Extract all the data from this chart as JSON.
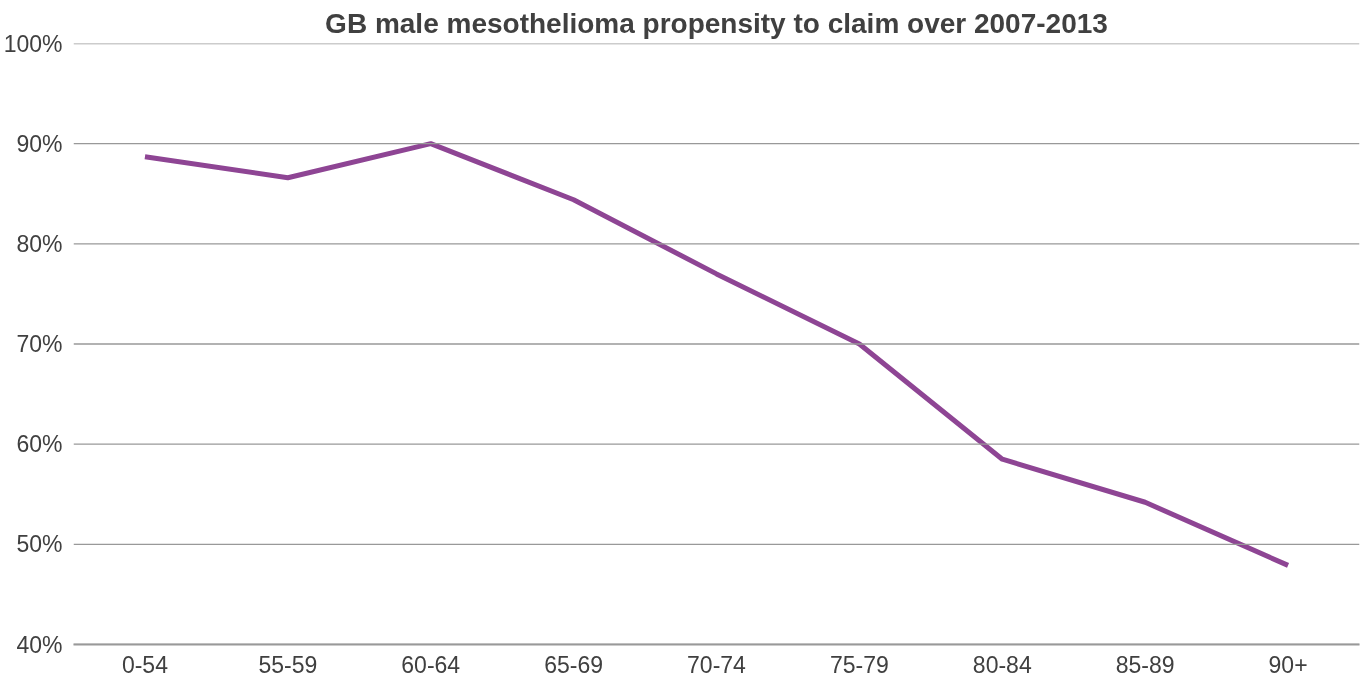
{
  "chart_data": {
    "type": "line",
    "title": "GB male mesothelioma propensity to claim over 2007-2013",
    "categories": [
      "0-54",
      "55-59",
      "60-64",
      "65-69",
      "70-74",
      "75-79",
      "80-84",
      "85-89",
      "90+"
    ],
    "series": [
      {
        "color": "#8e4594",
        "values": [
          88.7,
          86.6,
          90,
          84.4,
          77.0,
          70,
          58.5,
          54.2,
          47.9
        ]
      }
    ],
    "ylim": [
      40,
      100
    ],
    "yticks": [
      {
        "value": 40,
        "label": "40%"
      },
      {
        "value": 50,
        "label": "50%"
      },
      {
        "value": 60,
        "label": "60%"
      },
      {
        "value": 70,
        "label": "70%"
      },
      {
        "value": 80,
        "label": "80%"
      },
      {
        "value": 90,
        "label": "90%"
      },
      {
        "value": 100,
        "label": "100%"
      }
    ],
    "grid": "y",
    "marker": "none",
    "line_style": "solid"
  }
}
